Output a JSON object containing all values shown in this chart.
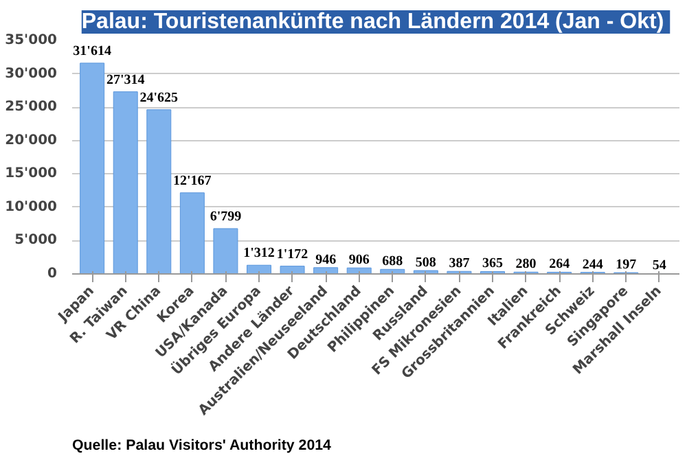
{
  "chart_data": {
    "type": "bar",
    "title": "Palau:  Touristenankünfte nach Ländern 2014 (Jan - Okt)",
    "categories": [
      "Japan",
      "R. Taiwan",
      "VR China",
      "Korea",
      "USA/Kanada",
      "Übriges Europa",
      "Andere Länder",
      "Australien/Neuseeland",
      "Deutschland",
      "Philippinen",
      "Russland",
      "FS Mikronesien",
      "Grossbritannien",
      "Italien",
      "Frankreich",
      "Schweiz",
      "Singapore",
      "Marshall Inseln"
    ],
    "values": [
      31614,
      27314,
      24625,
      12167,
      6799,
      1312,
      1172,
      946,
      906,
      688,
      508,
      387,
      365,
      280,
      264,
      244,
      197,
      54
    ],
    "value_labels": [
      "31'614",
      "27'314",
      "24'625",
      "12'167",
      "6'799",
      "1'312",
      "1'172",
      "946",
      "906",
      "688",
      "508",
      "387",
      "365",
      "280",
      "264",
      "244",
      "197",
      "54"
    ],
    "color": "#7fb2ec",
    "ylim": [
      0,
      35000
    ],
    "yticks": [
      0,
      {
        "value": 5000,
        "label": "5'000"
      },
      {
        "value": 10000,
        "label": "10'000"
      },
      {
        "value": 15000,
        "label": "15'000"
      },
      {
        "value": 20000,
        "label": "20'000"
      },
      {
        "value": 25000,
        "label": "25'000"
      },
      {
        "value": 30000,
        "label": "30'000"
      },
      {
        "value": 35000,
        "label": "35'000"
      }
    ],
    "grid": "y",
    "annotations": [
      "Quelle: Palau Visitors' Authority 2014"
    ]
  }
}
